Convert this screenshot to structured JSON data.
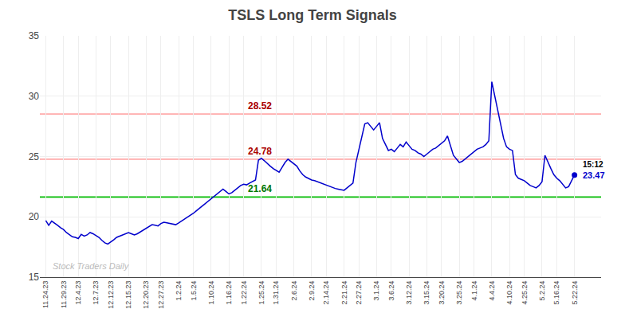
{
  "chart_data": {
    "type": "line",
    "title": "TSLS Long Term Signals",
    "color": "#0000cc",
    "categories": [
      "11.24.23",
      null,
      null,
      null,
      null,
      null,
      "11.29.23",
      null,
      null,
      null,
      null,
      "12.4.23",
      null,
      null,
      null,
      null,
      null,
      "12.7.23",
      null,
      null,
      null,
      null,
      "12.12.23",
      null,
      null,
      null,
      null,
      null,
      "12.15.23",
      null,
      null,
      null,
      null,
      null,
      "12.20.23",
      null,
      null,
      null,
      null,
      "12.27.23",
      null,
      null,
      null,
      null,
      null,
      "1.2.24",
      null,
      null,
      null,
      null,
      "1.5.24",
      null,
      null,
      null,
      null,
      null,
      "1.10.24",
      null,
      null,
      null,
      null,
      null,
      "1.16.24",
      null,
      null,
      null,
      null,
      "1.22.24",
      null,
      null,
      null,
      null,
      null,
      "1.25.24",
      null,
      null,
      null,
      null,
      "1.31.24",
      null,
      null,
      null,
      null,
      null,
      "2.6.24",
      null,
      null,
      null,
      null,
      null,
      "2.9.24",
      null,
      null,
      null,
      null,
      "2.14.24",
      null,
      null,
      null,
      null,
      null,
      "2.21.24",
      null,
      null,
      null,
      null,
      "2.27.24",
      null,
      null,
      null,
      null,
      null,
      "3.1.24",
      null,
      null,
      null,
      null,
      "3.6.24",
      null,
      null,
      null,
      null,
      null,
      "3.12.24",
      null,
      null,
      null,
      null,
      null,
      "3.15.24",
      null,
      null,
      null,
      null,
      "3.20.24",
      null,
      null,
      null,
      null,
      null,
      "3.25.24",
      null,
      null,
      null,
      null,
      "4.1.24",
      null,
      null,
      null,
      null,
      null,
      "4.4.24",
      null,
      null,
      null,
      null,
      null,
      "4.10.24",
      null,
      null,
      null,
      null,
      "4.25.24",
      null,
      null,
      null,
      null,
      null,
      "5.2.24",
      null,
      null,
      null,
      null,
      "5.16.24",
      null,
      null,
      null,
      null,
      null,
      "5.22.24"
    ],
    "values": [
      19.7,
      19.3,
      19.65,
      19.5,
      19.3,
      19.1,
      18.95,
      18.7,
      18.5,
      18.35,
      18.3,
      18.2,
      18.55,
      18.4,
      18.5,
      18.7,
      18.6,
      18.45,
      18.3,
      18.05,
      17.85,
      17.75,
      17.9,
      18.1,
      18.3,
      18.4,
      18.5,
      18.65,
      18.7,
      18.6,
      18.5,
      18.6,
      18.75,
      18.9,
      19.05,
      19.2,
      19.35,
      19.3,
      19.25,
      19.45,
      19.55,
      19.5,
      19.45,
      19.4,
      19.35,
      19.5,
      19.65,
      19.8,
      19.95,
      20.1,
      20.3,
      20.5,
      20.7,
      20.9,
      21.1,
      21.3,
      21.5,
      21.7,
      21.9,
      22.1,
      22.3,
      22.1,
      21.9,
      22.0,
      22.2,
      22.4,
      22.6,
      22.7,
      22.65,
      22.8,
      22.9,
      23.05,
      24.7,
      24.85,
      24.65,
      24.4,
      24.2,
      24.0,
      23.85,
      23.7,
      24.1,
      24.5,
      24.78,
      24.6,
      24.4,
      24.2,
      23.8,
      23.5,
      23.3,
      23.15,
      23.05,
      23.0,
      22.9,
      22.8,
      22.7,
      22.6,
      22.5,
      22.4,
      22.35,
      22.3,
      22.25,
      22.2,
      22.4,
      22.6,
      22.8,
      24.5,
      25.5,
      26.5,
      27.7,
      27.8,
      27.5,
      27.2,
      27.5,
      27.8,
      26.5,
      26.0,
      25.5,
      25.6,
      25.4,
      25.7,
      26.0,
      25.8,
      26.2,
      25.9,
      25.6,
      25.5,
      25.3,
      25.2,
      25.0,
      25.2,
      25.4,
      25.6,
      25.7,
      25.9,
      26.1,
      26.3,
      26.7,
      25.9,
      25.1,
      24.8,
      24.5,
      24.6,
      24.8,
      25.0,
      25.2,
      25.4,
      25.6,
      25.7,
      25.8,
      26.0,
      26.3,
      31.2,
      30.0,
      28.8,
      27.5,
      26.5,
      25.8,
      25.6,
      25.5,
      23.5,
      23.2,
      23.1,
      23.0,
      22.8,
      22.6,
      22.5,
      22.4,
      22.6,
      22.9,
      25.1,
      24.5,
      24.0,
      23.5,
      23.2,
      23.0,
      22.7,
      22.4,
      22.5,
      23.0,
      23.47
    ],
    "hlines": [
      {
        "value": 28.52,
        "label": "28.52",
        "color": "#ffaaaa",
        "label_color": "#aa0000"
      },
      {
        "value": 24.78,
        "label": "24.78",
        "color": "#ffaaaa",
        "label_color": "#aa0000"
      },
      {
        "value": 21.64,
        "label": "21.64",
        "color": "#00bb00",
        "label_color": "#007700"
      }
    ],
    "last_point": {
      "value": 23.47,
      "label": "23.47",
      "time": "15:12",
      "color": "#0000cc"
    },
    "watermark": {
      "text": "Stock Traders Daily",
      "color": "#bbbbbb"
    },
    "ylim": [
      15,
      35
    ],
    "yticks": [
      15,
      20,
      25,
      30,
      35
    ],
    "grid": true
  }
}
